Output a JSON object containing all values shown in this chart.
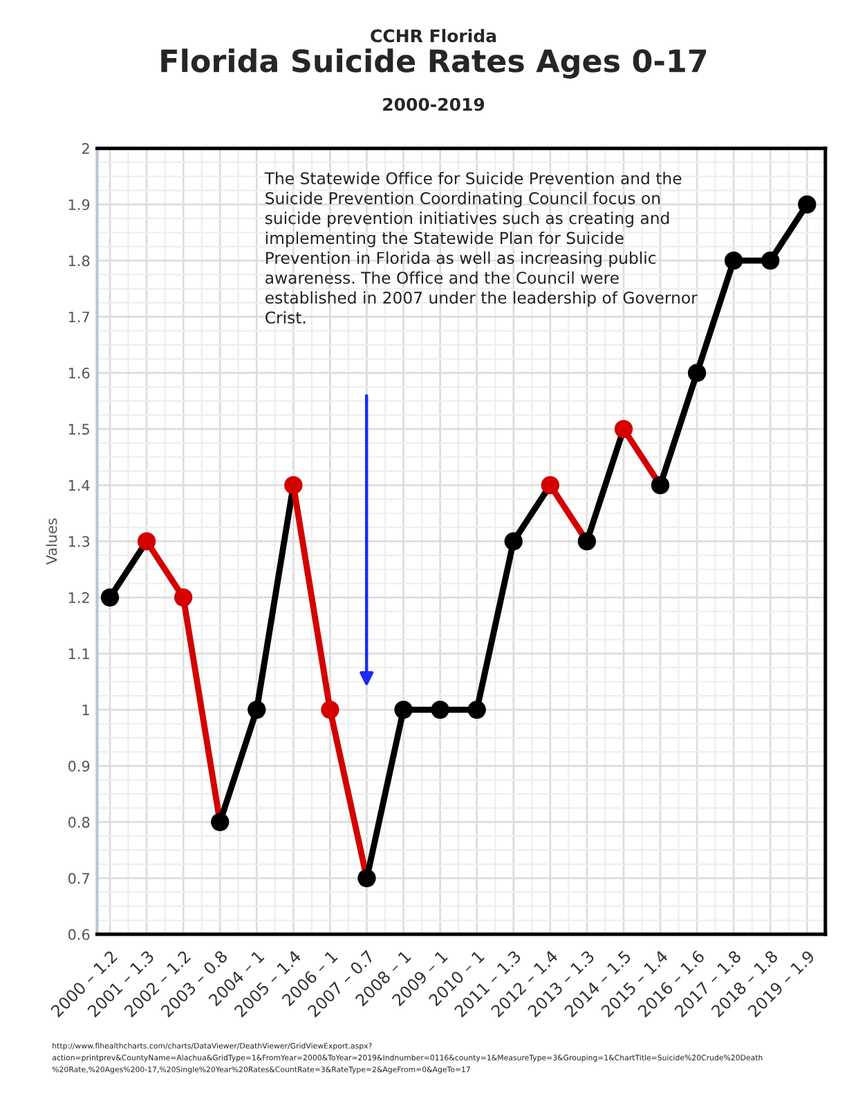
{
  "chart_data": {
    "type": "line",
    "title": "Florida Suicide Rates Ages 0-17",
    "subtitle": "2000-2019",
    "ylabel": "Values",
    "categories": [
      "2000 – 1.2",
      "2001 – 1.3",
      "2002 – 1.2",
      "2003 – 0.8",
      "2004 – 1",
      "2005 – 1.4",
      "2006 – 1",
      "2007 – 0.7",
      "2008 – 1",
      "2009 – 1",
      "2010 – 1",
      "2011 – 1.3",
      "2012 – 1.4",
      "2013 – 1.3",
      "2014 – 1.5",
      "2015 – 1.4",
      "2016 – 1.6",
      "2017 – 1.8",
      "2018 – 1.8",
      "2019 – 1.9"
    ],
    "series": [
      {
        "color": "#000000",
        "values": [
          1.2,
          1.3,
          null,
          null,
          null,
          null,
          null,
          null,
          null,
          null,
          null,
          null,
          null,
          null,
          null,
          null,
          null,
          null,
          null,
          null
        ]
      },
      {
        "color": "#d40000",
        "values": [
          null,
          1.3,
          1.2,
          0.8,
          null,
          null,
          null,
          null,
          null,
          null,
          null,
          null,
          null,
          null,
          null,
          null,
          null,
          null,
          null,
          null
        ]
      },
      {
        "color": "#000000",
        "values": [
          null,
          null,
          null,
          0.8,
          1,
          1.4,
          null,
          null,
          null,
          null,
          null,
          null,
          null,
          null,
          null,
          null,
          null,
          null,
          null,
          null
        ]
      },
      {
        "color": "#d40000",
        "values": [
          null,
          null,
          null,
          null,
          null,
          1.4,
          1,
          0.7,
          null,
          null,
          null,
          null,
          null,
          null,
          null,
          null,
          null,
          null,
          null,
          null
        ]
      },
      {
        "color": "#000000",
        "values": [
          null,
          null,
          null,
          null,
          null,
          null,
          null,
          0.7,
          1,
          1,
          1,
          1.3,
          1.4,
          null,
          null,
          null,
          null,
          null,
          null,
          null
        ]
      },
      {
        "color": "#d40000",
        "values": [
          null,
          null,
          null,
          null,
          null,
          null,
          null,
          null,
          null,
          null,
          null,
          null,
          1.4,
          1.3,
          null,
          null,
          null,
          null,
          null,
          null
        ]
      },
      {
        "color": "#000000",
        "values": [
          null,
          null,
          null,
          null,
          null,
          null,
          null,
          null,
          null,
          null,
          null,
          null,
          null,
          1.3,
          1.5,
          null,
          null,
          null,
          null,
          null
        ]
      },
      {
        "color": "#d40000",
        "values": [
          null,
          null,
          null,
          null,
          null,
          null,
          null,
          null,
          null,
          null,
          null,
          null,
          null,
          null,
          1.5,
          1.4,
          null,
          null,
          null,
          null
        ]
      },
      {
        "color": "#000000",
        "values": [
          null,
          null,
          null,
          null,
          null,
          null,
          null,
          null,
          null,
          null,
          null,
          null,
          null,
          null,
          null,
          1.4,
          1.6,
          1.8,
          1.8,
          1.9
        ]
      },
      {
        "type": "scatter",
        "values": [
          1.2,
          1.3,
          1.2,
          0.8,
          1,
          1.4,
          1,
          0.7,
          1,
          1,
          1,
          1.3,
          1.4,
          1.3,
          1.5,
          1.4,
          1.6,
          1.8,
          1.8,
          1.9
        ],
        "colors": [
          "#000000",
          "#d40000",
          "#d40000",
          "#000000",
          "#000000",
          "#d40000",
          "#d40000",
          "#000000",
          "#000000",
          "#000000",
          "#000000",
          "#000000",
          "#d40000",
          "#000000",
          "#d40000",
          "#000000",
          "#000000",
          "#000000",
          "#000000",
          "#000000"
        ]
      }
    ],
    "ylim": [
      0.6,
      2
    ],
    "yticks": [
      0.6,
      0.7,
      0.8,
      0.9,
      1,
      1.1,
      1.2,
      1.3,
      1.4,
      1.5,
      1.6,
      1.7,
      1.8,
      1.9,
      2
    ],
    "grid": true,
    "line_style": "solid",
    "annotations": [
      "CCHR Florida",
      "The Statewide Office for Suicide Prevention and the Suicide Prevention Coordinating Council focus on suicide prevention initiatives such as creating and implementing the Statewide Plan for Suicide Prevention in Florida as well as increasing public awareness. The Office and the Council were established in 2007 under the leadership of Governor Crist.",
      "http://www.flhealthcharts.com/charts/DataViewer/DeathViewer/GridViewExport.aspx?\naction=printprev&CountyName=Alachua&GridType=1&FromYear=2000&ToYear=2019&Indnumber=0116&county=1&MeasureType=3&Grouping=1&ChartTitle=Suicide%20Crude%20Death\n%20Rate,%20Ages%200-17,%20Single%20Year%20Rates&CountRate=3&RateType=2&AgeFrom=0&AgeTo=17"
    ]
  }
}
